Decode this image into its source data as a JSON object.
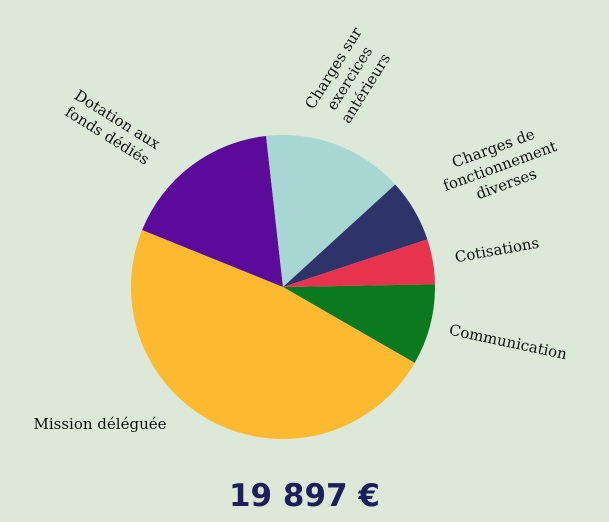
{
  "chart_data": {
    "type": "pie",
    "categories": [
      "Communication",
      "Mission déléguée",
      "Dotation aux fonds dédiés",
      "Charges sur exercices antérieurs",
      "Charges de fonctionnement diverses",
      "Cotisations"
    ],
    "values": [
      8.6,
      47.8,
      17.1,
      15.0,
      6.7,
      4.8
    ],
    "colors": [
      "#0b7a1f",
      "#fdb92f",
      "#5c0a9a",
      "#a8d7d3",
      "#2e3369",
      "#e8334f"
    ],
    "total": "19 897 €"
  }
}
